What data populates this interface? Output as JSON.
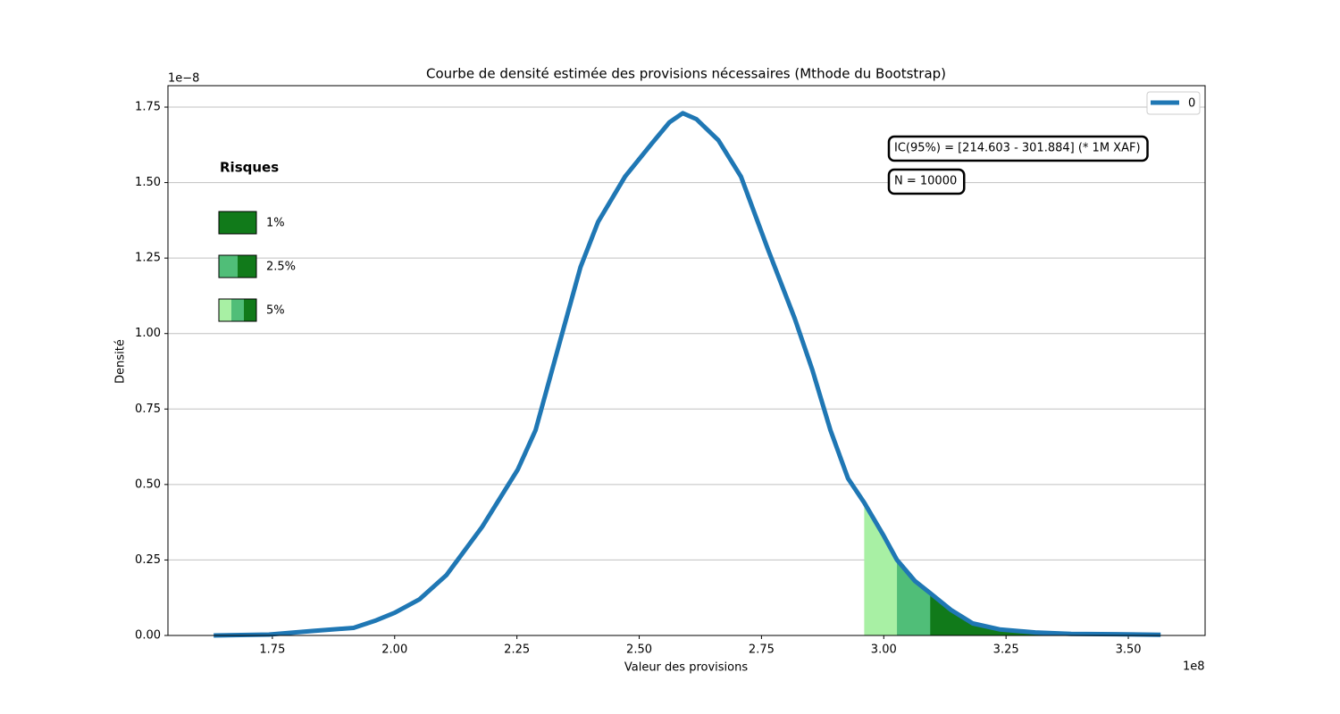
{
  "chart_data": {
    "type": "line",
    "title": "Courbe de densité estimée des provisions nécessaires (Mthode du Bootstrap)",
    "x_label": "Valeur des provisions",
    "y_label": "Densité",
    "x_offset": "1e8",
    "y_offset": "1e−8",
    "x": [
      1.63,
      1.743,
      1.834,
      1.916,
      1.962,
      2.0,
      2.051,
      2.106,
      2.179,
      2.252,
      2.288,
      2.334,
      2.38,
      2.416,
      2.471,
      2.526,
      2.562,
      2.589,
      2.617,
      2.662,
      2.708,
      2.763,
      2.818,
      2.854,
      2.891,
      2.927,
      2.96,
      3.0,
      3.027,
      3.064,
      3.095,
      3.137,
      3.182,
      3.237,
      3.31,
      3.383,
      3.476,
      3.566
    ],
    "series": [
      {
        "name": "0",
        "color": "#1f77b4",
        "values": [
          0,
          0.003,
          0.015,
          0.025,
          0.05,
          0.075,
          0.12,
          0.2,
          0.36,
          0.55,
          0.68,
          0.95,
          1.22,
          1.37,
          1.52,
          1.63,
          1.7,
          1.73,
          1.71,
          1.64,
          1.52,
          1.28,
          1.05,
          0.88,
          0.68,
          0.52,
          0.44,
          0.33,
          0.25,
          0.18,
          0.14,
          0.085,
          0.04,
          0.02,
          0.01,
          0.005,
          0.004,
          0.002
        ]
      }
    ],
    "xlim": [
      1.5365,
      3.657
    ],
    "ylim": [
      0,
      1.821
    ],
    "xticks": [
      1.75,
      {
        "value": 2,
        "label": "2.00"
      },
      2.25,
      {
        "value": 2.5,
        "label": "2.50"
      },
      2.75,
      {
        "value": 3,
        "label": "3.00"
      },
      3.25,
      {
        "value": 3.5,
        "label": "3.50"
      }
    ],
    "yticks": [
      {
        "value": 0,
        "label": "0.00"
      },
      0.25,
      {
        "value": 0.5,
        "label": "0.50"
      },
      0.75,
      {
        "value": 1,
        "label": "1.00"
      },
      1.25,
      {
        "value": 1.5,
        "label": "1.50"
      },
      1.75
    ],
    "grid": "y",
    "legend_position": "upper right",
    "risk_legend": {
      "title": "Risques",
      "items": [
        {
          "label": "1%",
          "start": 3.095,
          "color": "#117a1a"
        },
        {
          "label": "2.5%",
          "start": 3.027,
          "color": "#50be78"
        },
        {
          "label": "5%",
          "start": 2.96,
          "color": "#a8f0a4"
        }
      ]
    },
    "annotations": [
      "IC(95%) = [214.603 - 301.884] (* 1M XAF)",
      "N = 10000"
    ]
  }
}
